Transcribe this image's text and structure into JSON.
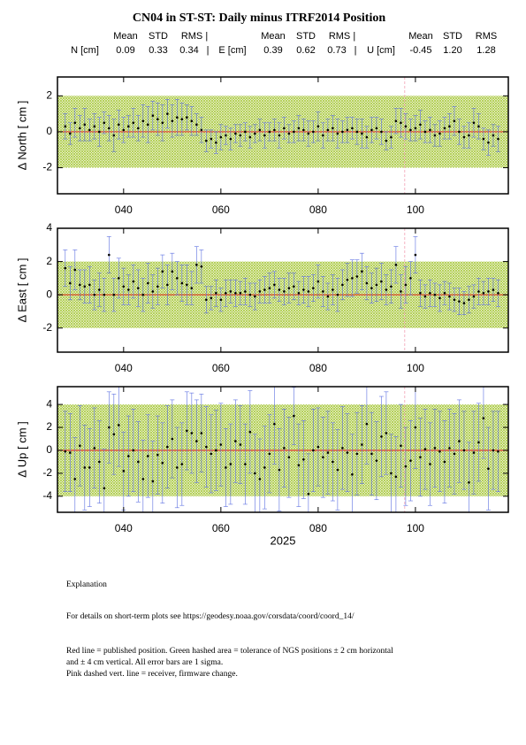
{
  "title": "CN04 in ST-ST: Daily minus ITRF2014 Position",
  "stats": {
    "headers": [
      [
        "Mean",
        "STD",
        "RMS |"
      ],
      [
        "Mean",
        "STD",
        "RMS |"
      ],
      [
        "Mean",
        "STD",
        "RMS"
      ]
    ],
    "rows": [
      [
        "N [cm]",
        "0.09",
        "0.33",
        "0.34",
        "|"
      ],
      [
        "E [cm]",
        "0.39",
        "0.62",
        "0.73",
        "|"
      ],
      [
        "U [cm]",
        "-0.45",
        "1.20",
        "1.28"
      ]
    ]
  },
  "explanation": [
    "Explanation",
    "For details on short-term plots see https://geodesy.noaa.gov/corsdata/coord/coord_14/",
    "Red line = published position.  Green hashed area = tolerance of NGS positions ± 2 cm horizontal",
    "and ± 4 cm vertical.  All error bars are 1 sigma.",
    "Pink dashed vert. line = receiver, firmware change."
  ],
  "chart_data": [
    {
      "type": "errorbar",
      "ylabel": "Δ North  [ cm ]",
      "x": [
        28,
        29,
        30,
        31,
        32,
        33,
        34,
        35,
        36,
        37,
        38,
        39,
        40,
        41,
        42,
        43,
        44,
        45,
        46,
        47,
        48,
        49,
        50,
        51,
        52,
        53,
        54,
        55,
        56,
        57,
        58,
        59,
        60,
        61,
        62,
        63,
        64,
        65,
        66,
        67,
        68,
        69,
        70,
        71,
        72,
        73,
        74,
        75,
        76,
        77,
        78,
        79,
        80,
        81,
        82,
        83,
        84,
        85,
        86,
        87,
        88,
        89,
        90,
        91,
        92,
        93,
        94,
        95,
        96,
        97,
        98,
        99,
        100,
        101,
        102,
        103,
        104,
        105,
        106,
        107,
        108,
        109,
        110,
        111,
        112,
        113,
        114,
        115,
        116,
        117
      ],
      "values": [
        0.3,
        -0.1,
        0.5,
        0.2,
        0.4,
        0.1,
        0.3,
        0.0,
        0.5,
        0.2,
        -0.2,
        0.4,
        0.1,
        0.3,
        0.5,
        0.2,
        0.6,
        0.4,
        0.9,
        0.7,
        0.5,
        1.0,
        0.6,
        0.8,
        0.7,
        0.8,
        0.6,
        0.4,
        0.1,
        -0.5,
        -0.4,
        -0.6,
        -0.3,
        -0.2,
        -0.4,
        -0.1,
        -0.2,
        0.0,
        -0.3,
        -0.1,
        0.1,
        -0.2,
        0.0,
        0.1,
        -0.2,
        0.2,
        -0.1,
        0.0,
        0.2,
        0.1,
        -0.1,
        0.0,
        0.3,
        -0.2,
        0.1,
        0.2,
        -0.1,
        0.0,
        0.1,
        0.2,
        0.0,
        -0.1,
        -0.3,
        0.1,
        0.2,
        0.0,
        -0.5,
        -0.3,
        0.6,
        0.5,
        0.3,
        0.1,
        0.2,
        0.4,
        0.0,
        0.1,
        -0.2,
        -0.1,
        0.2,
        0.3,
        0.6,
        0.0,
        -0.3,
        -0.2,
        0.5,
        0.3,
        -0.4,
        -0.6,
        -0.2,
        -0.4
      ],
      "errors": [
        0.7,
        0.6,
        0.8,
        0.7,
        0.9,
        0.6,
        0.7,
        0.8,
        0.6,
        0.7,
        0.9,
        0.8,
        0.7,
        0.6,
        0.8,
        0.7,
        0.9,
        1.0,
        0.8,
        0.9,
        1.0,
        0.8,
        0.9,
        1.0,
        0.9,
        0.7,
        0.8,
        0.6,
        0.7,
        0.6,
        0.5,
        0.6,
        0.7,
        0.5,
        0.6,
        0.5,
        0.6,
        0.5,
        0.6,
        0.5,
        0.6,
        0.7,
        0.5,
        0.6,
        0.7,
        0.6,
        0.5,
        0.6,
        0.7,
        0.6,
        0.7,
        0.6,
        0.8,
        0.7,
        0.6,
        0.7,
        0.8,
        0.6,
        0.7,
        0.6,
        0.7,
        0.8,
        0.6,
        0.7,
        0.6,
        0.7,
        0.5,
        0.6,
        0.7,
        0.8,
        0.7,
        0.6,
        0.7,
        0.8,
        0.6,
        0.7,
        0.6,
        0.7,
        0.6,
        0.7,
        0.8,
        0.7,
        0.6,
        0.7,
        0.8,
        0.7,
        0.6,
        0.7,
        0.6,
        0.7
      ],
      "xlim": [
        26.4,
        119.1
      ],
      "ylim": [
        -3.45,
        3.05
      ],
      "xticks": [
        {
          "value": 40,
          "label": "040"
        },
        {
          "value": 60,
          "label": "060"
        },
        {
          "value": 80,
          "label": "080"
        },
        {
          "value": 100,
          "label": "100"
        }
      ],
      "yticks": [
        -2,
        0,
        2
      ],
      "band": [
        -2,
        2
      ],
      "refline": 0,
      "vline": 97.8,
      "point_color": "#000000",
      "errorbar_color": "#5b6ee1",
      "band_color": "#a8c83c",
      "refline_color": "#e03a2a",
      "vline_color": "#f2a0b4"
    },
    {
      "type": "errorbar",
      "ylabel": "Δ East  [ cm ]",
      "x": [
        28,
        29,
        30,
        31,
        32,
        33,
        34,
        35,
        36,
        37,
        38,
        39,
        40,
        41,
        42,
        43,
        44,
        45,
        46,
        47,
        48,
        49,
        50,
        51,
        52,
        53,
        54,
        55,
        56,
        57,
        58,
        59,
        60,
        61,
        62,
        63,
        64,
        65,
        66,
        67,
        68,
        69,
        70,
        71,
        72,
        73,
        74,
        75,
        76,
        77,
        78,
        79,
        80,
        81,
        82,
        83,
        84,
        85,
        86,
        87,
        88,
        89,
        90,
        91,
        92,
        93,
        94,
        95,
        96,
        97,
        98,
        99,
        100,
        101,
        102,
        103,
        104,
        105,
        106,
        107,
        108,
        109,
        110,
        111,
        112,
        113,
        114,
        115,
        116,
        117
      ],
      "values": [
        1.6,
        0.7,
        1.5,
        0.6,
        0.5,
        0.6,
        0.0,
        0.3,
        0.0,
        2.4,
        0.0,
        1.0,
        0.5,
        0.3,
        0.8,
        0.4,
        0.0,
        0.7,
        0.2,
        0.5,
        1.4,
        0.6,
        1.4,
        1.0,
        0.7,
        0.6,
        0.4,
        1.8,
        1.7,
        -0.3,
        -0.2,
        0.1,
        -0.3,
        0.1,
        0.2,
        0.1,
        0.1,
        0.2,
        0.0,
        -0.1,
        0.2,
        0.3,
        0.4,
        0.6,
        0.3,
        0.2,
        0.4,
        0.5,
        0.1,
        0.3,
        0.2,
        0.4,
        0.8,
        0.2,
        -0.1,
        0.3,
        0.0,
        0.6,
        0.9,
        1.0,
        1.1,
        1.4,
        0.7,
        0.4,
        0.6,
        0.8,
        0.3,
        0.5,
        1.8,
        0.2,
        0.6,
        1.0,
        2.4,
        0.1,
        -0.1,
        0.1,
        0.0,
        -0.2,
        0.1,
        -0.1,
        -0.3,
        -0.4,
        -0.5,
        -0.3,
        -0.1,
        0.2,
        0.1,
        0.2,
        0.3,
        0.1
      ],
      "errors": [
        1.1,
        1.0,
        1.2,
        0.9,
        1.0,
        1.1,
        0.9,
        1.0,
        1.0,
        1.1,
        1.0,
        1.2,
        1.1,
        0.9,
        1.0,
        1.1,
        1.0,
        1.2,
        1.0,
        1.1,
        1.0,
        1.2,
        1.1,
        1.0,
        1.1,
        1.2,
        1.0,
        1.1,
        1.0,
        0.8,
        0.7,
        0.8,
        0.7,
        0.8,
        0.7,
        0.8,
        0.7,
        0.8,
        0.7,
        0.8,
        0.7,
        0.8,
        0.9,
        0.8,
        0.7,
        0.8,
        0.9,
        0.8,
        0.7,
        0.8,
        0.9,
        0.8,
        1.0,
        0.9,
        0.8,
        0.9,
        1.0,
        0.9,
        1.0,
        1.1,
        1.0,
        1.1,
        1.0,
        0.9,
        1.0,
        1.1,
        0.9,
        1.0,
        1.1,
        1.0,
        1.1,
        1.0,
        1.1,
        0.8,
        0.7,
        0.8,
        0.7,
        0.8,
        0.7,
        0.8,
        0.7,
        0.8,
        0.7,
        0.8,
        0.7,
        0.8,
        0.7,
        0.8,
        0.7,
        0.8
      ],
      "xlim": [
        26.4,
        119.1
      ],
      "ylim": [
        -3.45,
        4
      ],
      "xticks": [
        {
          "value": 40,
          "label": "040"
        },
        {
          "value": 60,
          "label": "060"
        },
        {
          "value": 80,
          "label": "080"
        },
        {
          "value": 100,
          "label": "100"
        }
      ],
      "yticks": [
        -2,
        0,
        2,
        4
      ],
      "band": [
        -2,
        2
      ],
      "refline": 0,
      "vline": 97.8,
      "point_color": "#000000",
      "errorbar_color": "#5b6ee1",
      "band_color": "#a8c83c",
      "refline_color": "#e03a2a",
      "vline_color": "#f2a0b4"
    },
    {
      "type": "errorbar",
      "ylabel": "Δ Up  [ cm ]",
      "xlabel": "2025",
      "x": [
        28,
        29,
        30,
        31,
        32,
        33,
        34,
        35,
        36,
        37,
        38,
        39,
        40,
        41,
        42,
        43,
        44,
        45,
        46,
        47,
        48,
        49,
        50,
        51,
        52,
        53,
        54,
        55,
        56,
        57,
        58,
        59,
        60,
        61,
        62,
        63,
        64,
        65,
        66,
        67,
        68,
        69,
        70,
        71,
        72,
        73,
        74,
        75,
        76,
        77,
        78,
        79,
        80,
        81,
        82,
        83,
        84,
        85,
        86,
        87,
        88,
        89,
        90,
        91,
        92,
        93,
        94,
        95,
        96,
        97,
        98,
        99,
        100,
        101,
        102,
        103,
        104,
        105,
        106,
        107,
        108,
        109,
        110,
        111,
        112,
        113,
        114,
        115,
        116,
        117
      ],
      "values": [
        -0.1,
        -0.2,
        -2.5,
        0.4,
        -1.5,
        -1.5,
        0.2,
        -1.0,
        -3.3,
        2.0,
        1.4,
        2.2,
        -1.8,
        -0.5,
        0.0,
        -1.0,
        -2.5,
        -0.5,
        -2.7,
        -0.4,
        -1.1,
        0.3,
        1.0,
        -1.5,
        -1.2,
        1.7,
        1.5,
        0.8,
        1.5,
        0.3,
        -0.3,
        0.0,
        0.5,
        -1.5,
        -1.2,
        0.8,
        0.5,
        -1.2,
        1.6,
        -2.0,
        -2.5,
        -1.5,
        -0.3,
        2.3,
        -1.7,
        0.2,
        -0.6,
        3.0,
        -1.3,
        -0.8,
        -3.8,
        0.0,
        0.3,
        -0.6,
        -0.2,
        -1.0,
        -1.7,
        0.2,
        -0.2,
        -2.1,
        -0.3,
        0.5,
        2.3,
        -0.3,
        -0.9,
        1.2,
        1.5,
        -2.0,
        -2.3,
        0.4,
        -1.4,
        -0.9,
        2.0,
        -0.6,
        0.1,
        -1.2,
        0.2,
        -0.1,
        -1.0,
        0.2,
        -0.3,
        0.8,
        0.0,
        -2.8,
        -0.2,
        0.7,
        2.8,
        -1.6,
        0.0,
        -0.1
      ],
      "errors": [
        3.5,
        3.4,
        3.6,
        3.5,
        3.7,
        3.4,
        3.5,
        3.6,
        3.4,
        3.1,
        3.5,
        3.6,
        3.4,
        3.5,
        3.6,
        3.5,
        3.4,
        3.6,
        3.5,
        3.4,
        3.5,
        3.6,
        3.4,
        3.5,
        3.6,
        3.4,
        3.5,
        3.6,
        3.4,
        3.5,
        3.4,
        3.5,
        3.6,
        3.4,
        3.5,
        3.6,
        3.4,
        3.5,
        3.6,
        3.4,
        3.5,
        3.6,
        3.4,
        3.5,
        3.6,
        3.4,
        3.5,
        2.5,
        3.6,
        3.4,
        3.5,
        3.6,
        3.4,
        3.5,
        3.6,
        3.4,
        3.5,
        3.6,
        3.4,
        3.5,
        3.6,
        3.4,
        3.5,
        3.6,
        3.4,
        3.5,
        3.6,
        3.4,
        3.5,
        3.6,
        3.4,
        3.5,
        3.6,
        3.4,
        3.5,
        3.6,
        3.4,
        3.5,
        3.6,
        3.4,
        3.5,
        3.6,
        3.4,
        3.5,
        3.6,
        3.4,
        3.5,
        3.6,
        3.4,
        3.5
      ],
      "xlim": [
        26.4,
        119.1
      ],
      "ylim": [
        -5.4,
        5.55
      ],
      "xticks": [
        {
          "value": 40,
          "label": "040"
        },
        {
          "value": 60,
          "label": "060"
        },
        {
          "value": 80,
          "label": "080"
        },
        {
          "value": 100,
          "label": "100"
        }
      ],
      "yticks": [
        -4,
        -2,
        0,
        2,
        4
      ],
      "band": [
        -4,
        4
      ],
      "refline": 0,
      "vline": 97.8,
      "point_color": "#000000",
      "errorbar_color": "#5b6ee1",
      "band_color": "#a8c83c",
      "refline_color": "#e03a2a",
      "vline_color": "#f2a0b4"
    }
  ]
}
